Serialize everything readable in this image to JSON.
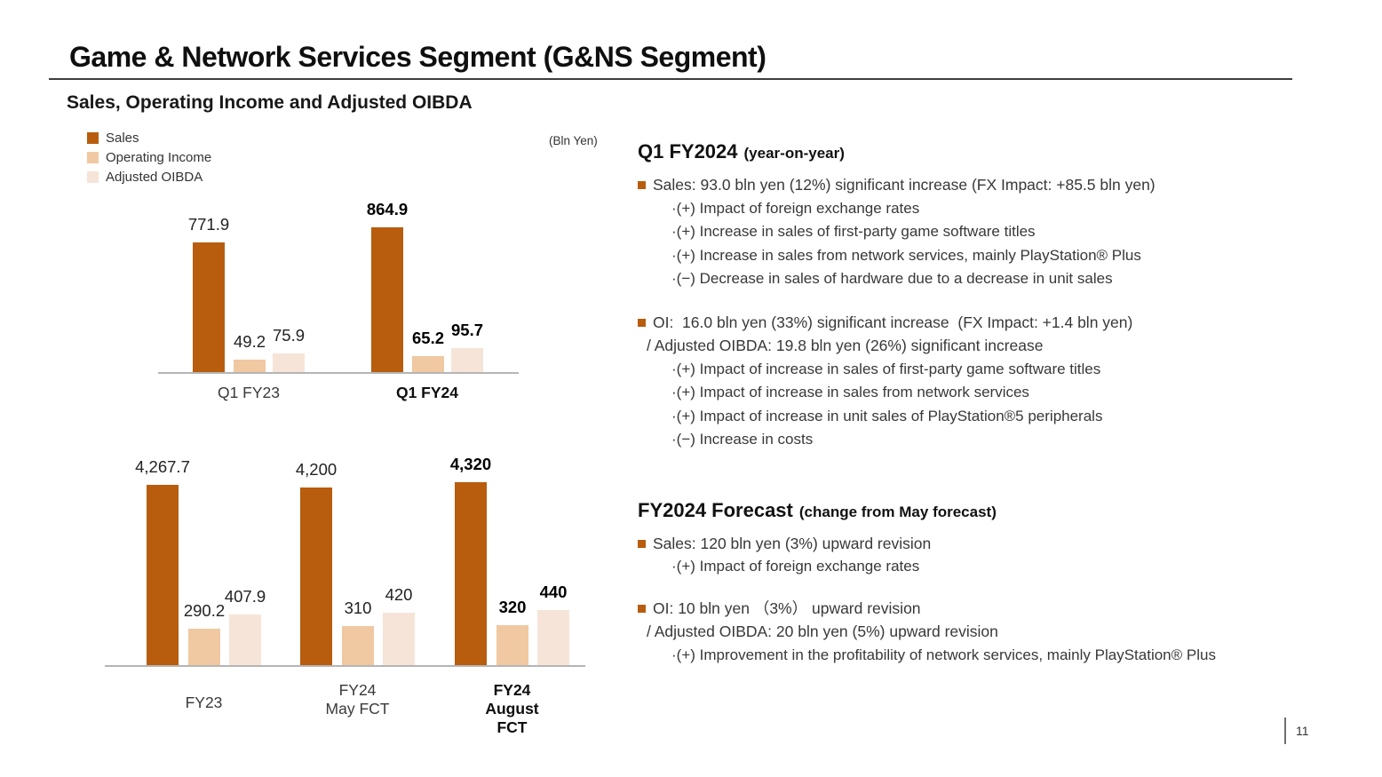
{
  "slide": {
    "title": "Game & Network Services Segment (G&NS Segment)",
    "subtitle": "Sales, Operating Income and Adjusted OIBDA",
    "unit_note": "(Bln Yen)",
    "page_number": "11"
  },
  "colors": {
    "sales": "#b85c0e",
    "operating_income": "#f0c8a2",
    "adjusted_oibda": "#f7e4d8",
    "accent_bullet": "#b85c0e",
    "axis": "#b5b5b5"
  },
  "legend": [
    {
      "label": "Sales",
      "color_key": "sales"
    },
    {
      "label": "Operating Income",
      "color_key": "operating_income"
    },
    {
      "label": "Adjusted OIBDA",
      "color_key": "adjusted_oibda"
    }
  ],
  "chart_data": [
    {
      "type": "bar",
      "title": "Q1 quarterly comparison (Bln Yen)",
      "unit": "Bln Yen",
      "legend_position": "top-left",
      "grid": false,
      "categories": [
        {
          "label": "Q1 FY23",
          "bold": false
        },
        {
          "label": "Q1 FY24",
          "bold": true
        }
      ],
      "series": [
        {
          "name": "Sales",
          "color_key": "sales",
          "values": [
            771.9,
            864.9
          ],
          "value_labels": [
            "771.9",
            "864.9"
          ]
        },
        {
          "name": "Operating Income",
          "color_key": "operating_income",
          "values": [
            49.2,
            65.2
          ],
          "value_labels": [
            "49.2",
            "65.2"
          ]
        },
        {
          "name": "Adjusted OIBDA",
          "color_key": "adjusted_oibda",
          "values": [
            75.9,
            95.7
          ],
          "value_labels": [
            "75.9",
            "95.7"
          ]
        }
      ]
    },
    {
      "type": "bar",
      "title": "Full-year actual and forecasts (Bln Yen)",
      "unit": "Bln Yen",
      "grid": false,
      "categories": [
        {
          "label": "FY23",
          "bold": false
        },
        {
          "label": "FY24\nMay FCT",
          "bold": false
        },
        {
          "label": "FY24\nAugust FCT",
          "bold": true
        }
      ],
      "series": [
        {
          "name": "Sales",
          "color_key": "sales",
          "values": [
            4267.7,
            4200,
            4320
          ],
          "value_labels": [
            "4,267.7",
            "4,200",
            "4,320"
          ]
        },
        {
          "name": "Operating Income",
          "color_key": "operating_income",
          "values": [
            290.2,
            310,
            320
          ],
          "value_labels": [
            "290.2",
            "310",
            "320"
          ]
        },
        {
          "name": "Adjusted OIBDA",
          "color_key": "adjusted_oibda",
          "values": [
            407.9,
            420,
            440
          ],
          "value_labels": [
            "407.9",
            "420",
            "440"
          ]
        }
      ]
    }
  ],
  "right_panel": {
    "sections": [
      {
        "heading": "Q1 FY2024",
        "heading_note": "(year-on-year)",
        "blocks": [
          {
            "lead": [
              "Sales: 93.0 bln yen (12%) significant increase (FX Impact: +85.5 bln yen)"
            ],
            "subs": [
              "·(+) Impact of foreign exchange rates",
              "·(+) Increase in sales of first-party game software titles",
              "·(+) Increase in sales from network services, mainly PlayStation® Plus",
              "·(−) Decrease in sales of hardware due to a decrease in unit sales"
            ]
          },
          {
            "lead": [
              "OI:  16.0 bln yen (33%) significant increase  (FX Impact: +1.4 bln yen)",
              "/ Adjusted OIBDA: 19.8 bln yen (26%) significant increase"
            ],
            "subs": [
              "·(+) Impact of increase in sales of first-party game software titles",
              "·(+) Impact of increase in sales from network services",
              "·(+) Impact of increase in unit sales of PlayStation®5 peripherals",
              "·(−) Increase in costs"
            ]
          }
        ]
      },
      {
        "heading": "FY2024 Forecast",
        "heading_note": "(change from May forecast)",
        "blocks": [
          {
            "lead": [
              "Sales: 120 bln yen (3%) upward revision"
            ],
            "subs": [
              "·(+) Impact of foreign exchange rates"
            ]
          },
          {
            "lead": [
              "OI: 10 bln yen （3%） upward revision",
              "/ Adjusted OIBDA: 20 bln yen (5%) upward revision"
            ],
            "subs": [
              "·(+) Improvement in the profitability of network services, mainly PlayStation® Plus"
            ]
          }
        ]
      }
    ]
  }
}
